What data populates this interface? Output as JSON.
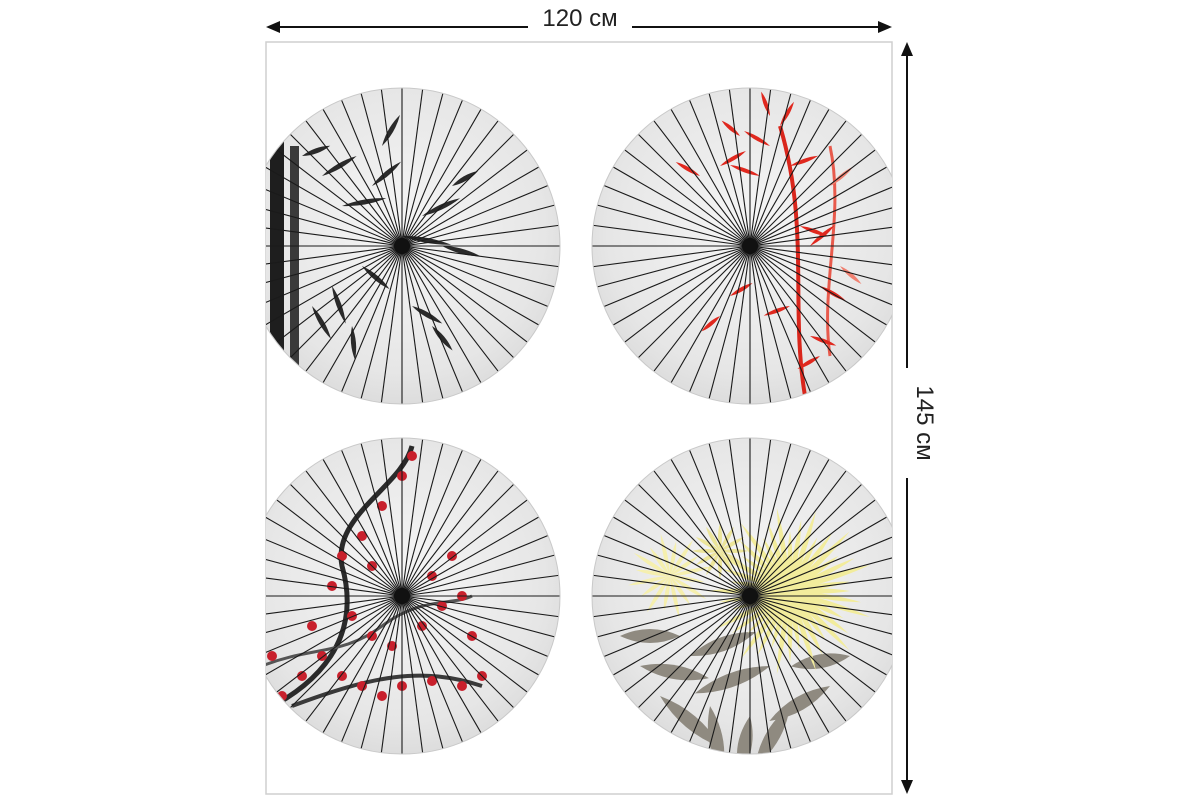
{
  "dimensions": {
    "width_label": "120 см",
    "height_label": "145 см"
  },
  "product": {
    "panels": [
      {
        "motif": "bamboo-ink",
        "accent": "#2b2b2b"
      },
      {
        "motif": "red-bamboo",
        "accent": "#e0281e"
      },
      {
        "motif": "plum-blossom",
        "accent": "#c8202c"
      },
      {
        "motif": "chrysanthemum",
        "accent": "#f2ec9c"
      }
    ],
    "colors": {
      "panel_bg": "#ffffff",
      "umbrella_paper": "#e9e9e9",
      "rib": "#1a1a1a",
      "frame": "#cfcfcf"
    }
  }
}
